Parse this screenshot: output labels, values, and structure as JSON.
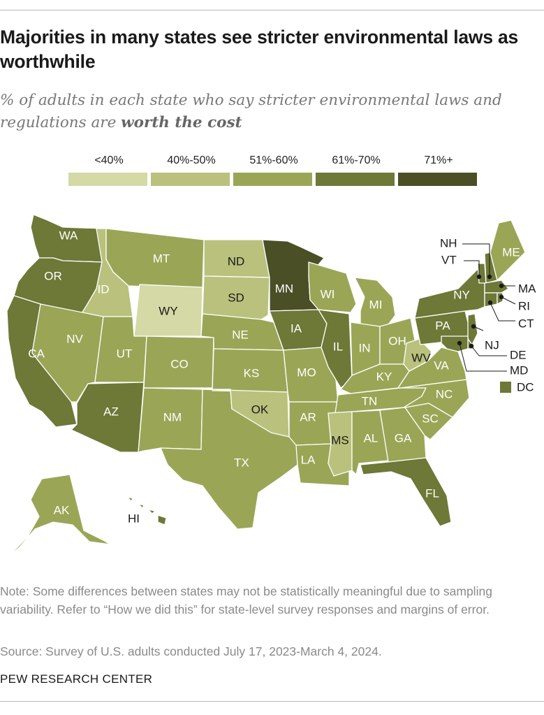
{
  "title": "Majorities in many states see stricter environmental laws as worthwhile",
  "subtitle_prefix": "% of adults in each state who say stricter environmental laws and regulations are ",
  "subtitle_emphasis": "worth the cost",
  "colors": {
    "lt40": "#d4d9a6",
    "b40_50": "#b9c17c",
    "b51_60": "#9aa656",
    "b61_70": "#6e7837",
    "b71plus": "#4a4f26",
    "border": "#ffffff"
  },
  "legend": [
    {
      "label": "<40%",
      "color": "#d4d9a6"
    },
    {
      "label": "40%-50%",
      "color": "#b9c17c"
    },
    {
      "label": "51%-60%",
      "color": "#9aa656"
    },
    {
      "label": "61%-70%",
      "color": "#6e7837"
    },
    {
      "label": "71%+",
      "color": "#4a4f26"
    }
  ],
  "states": {
    "WA": "61%-70%",
    "OR": "61%-70%",
    "CA": "61%-70%",
    "ID": "40%-50%",
    "NV": "51%-60%",
    "MT": "51%-60%",
    "WY": "<40%",
    "UT": "51%-60%",
    "AZ": "61%-70%",
    "CO": "51%-60%",
    "NM": "51%-60%",
    "ND": "40%-50%",
    "SD": "40%-50%",
    "NE": "51%-60%",
    "KS": "51%-60%",
    "OK": "40%-50%",
    "TX": "51%-60%",
    "MN": "71%+",
    "IA": "61%-70%",
    "MO": "51%-60%",
    "AR": "51%-60%",
    "LA": "51%-60%",
    "WI": "51%-60%",
    "IL": "61%-70%",
    "MI": "51%-60%",
    "IN": "51%-60%",
    "OH": "51%-60%",
    "KY": "51%-60%",
    "TN": "51%-60%",
    "MS": "40%-50%",
    "AL": "51%-60%",
    "GA": "51%-60%",
    "FL": "61%-70%",
    "SC": "51%-60%",
    "NC": "51%-60%",
    "VA": "51%-60%",
    "WV": "40%-50%",
    "PA": "61%-70%",
    "NY": "61%-70%",
    "VT": "61%-70%",
    "NH": "61%-70%",
    "ME": "51%-60%",
    "MA": "61%-70%",
    "RI": "61%-70%",
    "CT": "61%-70%",
    "NJ": "61%-70%",
    "DE": "61%-70%",
    "MD": "61%-70%",
    "DC": "61%-70%",
    "AK": "51%-60%",
    "HI": "61%-70%"
  },
  "note": "Note: Some differences between states may not be statistically meaningful due to sampling variability. Refer to “How we did this” for state-level survey responses and margins of error.",
  "source": "Source: Survey of U.S. adults conducted July 17, 2023-March 4, 2024.",
  "org": "PEW RESEARCH CENTER"
}
